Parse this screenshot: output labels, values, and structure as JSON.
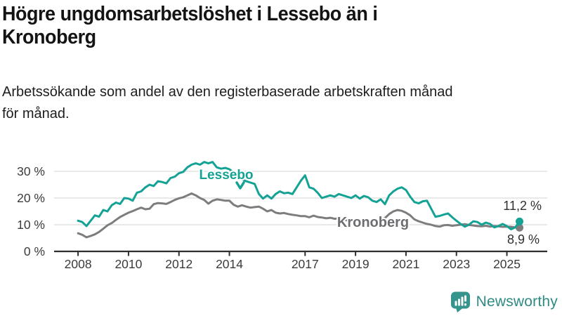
{
  "header": {
    "title_lines": [
      "Högre ungdomsarbetslöshet i Lessebo än i",
      "Kronoberg"
    ],
    "subtitle_lines": [
      "Arbetssökande som andel av den registerbaserade arbetskraften månad",
      "för månad."
    ]
  },
  "chart_data": {
    "type": "line",
    "title": "Högre ungdomsarbetslöshet i Lessebo än i Kronoberg",
    "subtitle": "Arbetssökande som andel av den registerbaserade arbetskraften månad för månad.",
    "unit": "%",
    "grid": "horizontal",
    "legend": "inline-labels",
    "x_start": 2008,
    "x_step_years": 0.166667,
    "xlim": [
      2007.05,
      2026.6
    ],
    "ylim": [
      0,
      36
    ],
    "yticks": [
      0,
      10,
      20,
      30
    ],
    "ytick_labels": [
      "0 %",
      "10 %",
      "20 %",
      "30 %"
    ],
    "xticks": [
      2008,
      2010,
      2012,
      2014,
      2017,
      2019,
      2021,
      2023,
      2025
    ],
    "xtick_labels": [
      "2008",
      "2010",
      "2012",
      "2014",
      "2017",
      "2019",
      "2021",
      "2023",
      "2025"
    ],
    "series": [
      {
        "name": "Lessebo",
        "color": "#14a295",
        "end_label": "11,2 %",
        "end_value": 11.2,
        "values": [
          11.5,
          11,
          9.5,
          11.5,
          13.5,
          13,
          15.5,
          15,
          17.3,
          18.3,
          17.8,
          20,
          19.8,
          19,
          22,
          22.5,
          24,
          25,
          24.5,
          26.3,
          26,
          25.5,
          27.5,
          28,
          29.3,
          29.8,
          31.5,
          32.5,
          33,
          32.5,
          33.5,
          33,
          33.5,
          31.5,
          31,
          31.3,
          30.8,
          29.5,
          28.2,
          27,
          26.3,
          25.8,
          25.3,
          21.5,
          19.8,
          21,
          19.8,
          21.5,
          22.5,
          21.8,
          22,
          21.5,
          24,
          26.5,
          28.5,
          24,
          23.5,
          22,
          20,
          20.5,
          21,
          20.5,
          21.5,
          21,
          20.5,
          20,
          21,
          19.8,
          20.8,
          20.3,
          19,
          18.5,
          19.5,
          17.7,
          21,
          22.5,
          23.5,
          24,
          23,
          20.5,
          18.5,
          18,
          18.8,
          19,
          16,
          13,
          13.3,
          13.8,
          14.2,
          12.8,
          11.5,
          10.3,
          9.3,
          10,
          11.3,
          11,
          10,
          10.8,
          10.3,
          9,
          9.5,
          10.3,
          9.5,
          8.3,
          9,
          11.2
        ]
      },
      {
        "name": "Kronoberg",
        "color": "#7d7d7d",
        "end_label": "8,9 %",
        "end_value": 8.9,
        "values": [
          6.8,
          6.2,
          5.3,
          5.8,
          6.4,
          7.3,
          8.5,
          9.8,
          10.6,
          11.8,
          12.9,
          13.7,
          14.5,
          15.1,
          15.8,
          16.4,
          15.8,
          16,
          17.7,
          18.1,
          18,
          17.8,
          18.5,
          19.3,
          19.9,
          20.3,
          21,
          21.7,
          21,
          20,
          19.3,
          17.9,
          19,
          19.5,
          19.3,
          19,
          19,
          17.5,
          16.8,
          17.3,
          16.8,
          16.4,
          16.6,
          16.8,
          16,
          15,
          15.5,
          14.5,
          14.2,
          14.4,
          14,
          13.7,
          13.5,
          13.2,
          13.2,
          12.8,
          13.4,
          12.9,
          12.7,
          12.4,
          12.6,
          12.2,
          12.4,
          12,
          11.6,
          11.8,
          11.9,
          11.6,
          11.8,
          11.5,
          11.3,
          11.5,
          11.8,
          12.5,
          14,
          15,
          15.5,
          15.2,
          14.5,
          13.5,
          12,
          11.3,
          10.8,
          10.3,
          10,
          9.5,
          9.3,
          9.8,
          9.9,
          9.6,
          9.8,
          10,
          10.2,
          9.9,
          9.7,
          9.5,
          9.4,
          9.6,
          9.3,
          9.5,
          9.4,
          9.2,
          9.3,
          9.2,
          9,
          8.9
        ]
      }
    ]
  },
  "footer": {
    "brand": "Newsworthy",
    "logo_icon": "bar-chart-speech-bubble-icon"
  },
  "colors": {
    "lessebo": "#14a295",
    "kronoberg": "#7d7d7d",
    "brand_teal": "#2e8b84",
    "logo_bubble": "#35948b",
    "grid": "#dcdcdc",
    "axis": "#2e2e2e",
    "axis_text": "#3b3b3b",
    "title_text": "#131413"
  }
}
